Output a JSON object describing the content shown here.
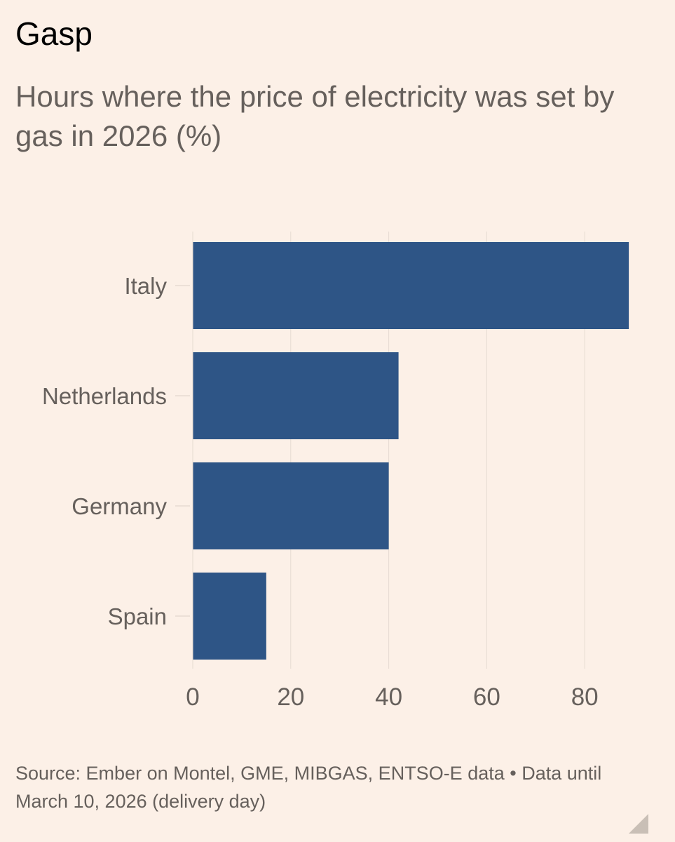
{
  "header": {
    "headline": "Gasp",
    "subtitle": "Hours where the price of electricity was set by gas in 2026 (%)"
  },
  "footer": {
    "source": "Source: Ember on Montel, GME, MIBGAS, ENTSO-E data • Data until March 10, 2026 (delivery day)"
  },
  "colors": {
    "background": "#fcf0e7",
    "bar": "#2e5586",
    "grid": "#e6dbd2",
    "tick_text": "#66605c"
  },
  "chart_data": {
    "type": "bar",
    "orientation": "horizontal",
    "title": "Hours where the price of electricity was set by gas in 2026 (%)",
    "categories": [
      "Italy",
      "Netherlands",
      "Germany",
      "Spain"
    ],
    "values": [
      89,
      42,
      40,
      15
    ],
    "xlabel": "",
    "ylabel": "",
    "xlim": [
      0,
      90
    ],
    "xticks": [
      0,
      20,
      40,
      60,
      80
    ],
    "grid": true
  }
}
